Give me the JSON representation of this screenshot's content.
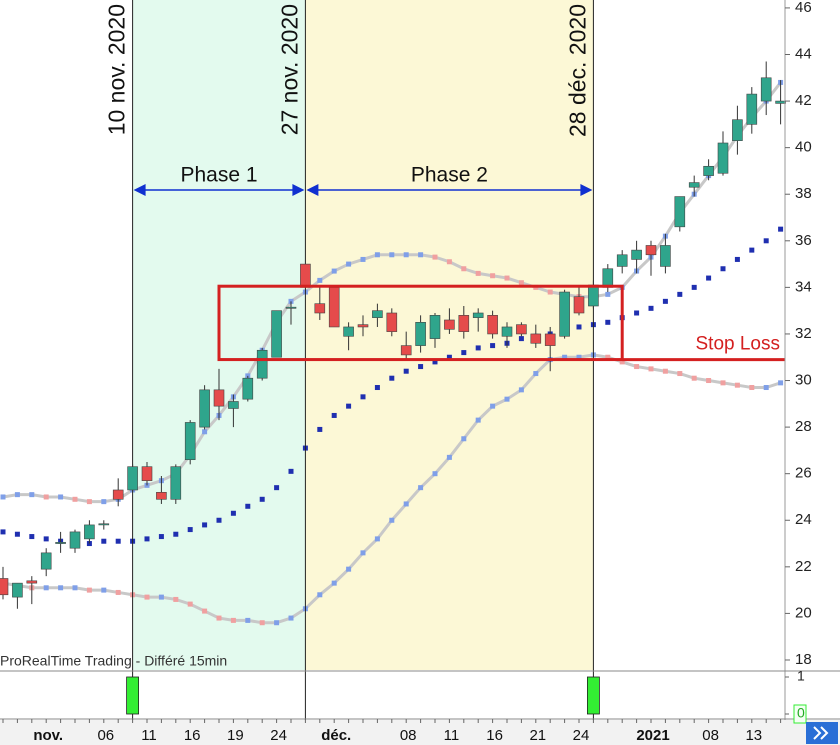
{
  "chart_data": {
    "type": "candlestick",
    "watermark": "ProRealTime Trading - Différé 15min",
    "categories": [
      null,
      null,
      null,
      "nov.",
      null,
      null,
      null,
      "06",
      null,
      null,
      "11",
      null,
      null,
      "16",
      null,
      null,
      "19",
      null,
      null,
      "24",
      null,
      null,
      null,
      "déc.",
      null,
      null,
      null,
      null,
      "08",
      null,
      null,
      "11",
      null,
      null,
      "16",
      null,
      null,
      "21",
      null,
      null,
      "24",
      null,
      null,
      null,
      null,
      "2021",
      null,
      null,
      null,
      "08",
      null,
      null,
      "13",
      null,
      null
    ],
    "open": [
      21.5,
      20.7,
      21.4,
      21.9,
      23.0,
      22.8,
      23.2,
      23.8,
      25.3,
      25.3,
      26.3,
      25.2,
      24.9,
      26.6,
      28.0,
      29.6,
      28.8,
      29.2,
      30.1,
      31.0,
      33.1,
      35.0,
      33.3,
      34.0,
      31.9,
      32.4,
      32.7,
      32.9,
      31.5,
      31.5,
      31.8,
      32.6,
      32.8,
      32.7,
      32.8,
      31.9,
      32.4,
      32.0,
      32.0,
      31.9,
      33.6,
      33.2,
      34.0,
      34.9,
      35.2,
      35.8,
      34.9,
      36.6,
      38.3,
      38.8,
      38.9,
      40.3,
      41.0,
      42.0,
      41.9
    ],
    "high": [
      22.0,
      21.3,
      21.6,
      22.8,
      23.5,
      23.6,
      24.0,
      24.0,
      25.8,
      26.4,
      26.5,
      25.9,
      26.4,
      28.3,
      29.8,
      30.5,
      29.4,
      30.2,
      31.4,
      33.0,
      33.4,
      35.0,
      34.1,
      34.0,
      32.5,
      32.8,
      33.3,
      33.1,
      32.1,
      32.8,
      32.9,
      33.1,
      33.2,
      33.1,
      33.0,
      32.5,
      32.5,
      32.4,
      32.3,
      33.9,
      34.0,
      34.3,
      35.0,
      35.6,
      36.0,
      36.0,
      36.3,
      37.9,
      38.8,
      39.5,
      40.7,
      41.8,
      42.6,
      43.7,
      42.9
    ],
    "low": [
      20.6,
      20.2,
      20.4,
      21.6,
      22.6,
      22.6,
      23.0,
      23.6,
      24.6,
      25.2,
      25.5,
      24.7,
      24.7,
      26.4,
      27.9,
      28.3,
      28.0,
      29.1,
      30.0,
      31.0,
      32.4,
      34.0,
      32.6,
      32.3,
      31.3,
      31.9,
      32.3,
      31.9,
      30.9,
      31.2,
      31.4,
      32.0,
      31.8,
      32.1,
      31.8,
      31.4,
      31.9,
      31.4,
      30.4,
      31.8,
      32.8,
      33.1,
      33.8,
      34.6,
      34.6,
      34.5,
      34.6,
      36.4,
      37.9,
      38.6,
      38.8,
      39.7,
      40.6,
      41.4,
      41.0
    ],
    "close": [
      20.8,
      21.3,
      21.3,
      22.6,
      23.05,
      23.5,
      23.8,
      23.85,
      24.9,
      26.3,
      25.7,
      24.9,
      26.3,
      28.2,
      29.6,
      28.9,
      29.1,
      30.1,
      31.3,
      33.0,
      33.15,
      34.0,
      32.9,
      32.3,
      32.3,
      32.3,
      33.0,
      32.1,
      31.1,
      32.5,
      32.8,
      32.2,
      32.1,
      32.9,
      32.0,
      32.3,
      32.0,
      31.6,
      31.5,
      33.8,
      32.9,
      34.1,
      34.8,
      35.4,
      35.6,
      35.4,
      35.8,
      37.9,
      38.5,
      39.2,
      40.2,
      41.2,
      42.3,
      43.0,
      42.0
    ],
    "up_color": "#2fa58c",
    "down_color": "#e54b4b",
    "upper_band": {
      "values": [
        25.0,
        25.1,
        25.1,
        25.0,
        25.0,
        24.9,
        24.8,
        24.8,
        24.9,
        25.3,
        25.5,
        25.7,
        26.0,
        26.8,
        27.8,
        28.5,
        29.3,
        30.2,
        31.3,
        32.5,
        33.4,
        33.8,
        34.3,
        34.7,
        35.0,
        35.2,
        35.4,
        35.4,
        35.4,
        35.4,
        35.3,
        35.1,
        34.8,
        34.6,
        34.5,
        34.4,
        34.2,
        34.0,
        33.8,
        33.7,
        33.6,
        33.6,
        33.7,
        34.0,
        34.7,
        35.3,
        36.2,
        37.2,
        38.0,
        38.8,
        39.6,
        40.5,
        41.3,
        42.0,
        42.8
      ]
    },
    "lower_band": {
      "values": [
        21.3,
        21.2,
        21.1,
        21.1,
        21.1,
        21.1,
        21.0,
        21.0,
        20.9,
        20.8,
        20.7,
        20.7,
        20.6,
        20.4,
        20.1,
        19.8,
        19.7,
        19.7,
        19.6,
        19.6,
        19.8,
        20.2,
        20.8,
        21.3,
        21.9,
        22.6,
        23.2,
        24.0,
        24.7,
        25.4,
        26.0,
        26.7,
        27.5,
        28.3,
        28.9,
        29.2,
        29.6,
        30.3,
        30.9,
        31.0,
        31.0,
        31.1,
        31.0,
        30.8,
        30.6,
        30.5,
        30.4,
        30.3,
        30.1,
        30.0,
        29.9,
        29.8,
        29.7,
        29.7,
        29.9
      ]
    },
    "band_color": "#c8c8c8",
    "band_rise_color": "#7f9fe8",
    "band_fall_color": "#f0a0a0",
    "sar": {
      "color": "#1f2fb0",
      "values": [
        23.5,
        23.4,
        23.3,
        23.2,
        23.1,
        23.0,
        23.0,
        23.1,
        23.1,
        23.1,
        23.2,
        23.3,
        23.4,
        23.6,
        23.8,
        24.0,
        24.3,
        24.6,
        24.9,
        25.4,
        26.1,
        27.1,
        27.9,
        28.5,
        28.9,
        29.3,
        29.7,
        30.1,
        30.4,
        30.6,
        30.8,
        31.0,
        31.2,
        31.4,
        31.5,
        31.6,
        31.8,
        31.9,
        32.0,
        32.1,
        32.3,
        32.4,
        32.5,
        32.7,
        32.9,
        33.1,
        33.4,
        33.7,
        34.0,
        34.4,
        34.8,
        35.2,
        35.6,
        36.0,
        36.5
      ]
    },
    "ylim": [
      17.57,
      46.34
    ],
    "yticks": [
      18,
      20,
      22,
      24,
      26,
      28,
      30,
      32,
      34,
      36,
      38,
      40,
      42,
      44,
      46
    ],
    "markers": [
      {
        "index": 9,
        "label": "10 nov. 2020"
      },
      {
        "index": 21,
        "label": "27 nov. 2020"
      },
      {
        "index": 41,
        "label": "28 déc. 2020"
      }
    ],
    "phases": [
      {
        "label": "Phase 1",
        "from": 9,
        "to": 21,
        "color": "#e3faee"
      },
      {
        "label": "Phase 2",
        "from": 21,
        "to": 41,
        "color": "#fcf8d6"
      }
    ],
    "range_box": {
      "from": 15,
      "to": 43,
      "low": 30.9,
      "high": 34.05,
      "color": "#d42020"
    },
    "stop_loss": {
      "label": "Stop Loss",
      "value": 30.9
    },
    "signal": {
      "color": "#33ee33",
      "values": [
        0,
        0,
        0,
        0,
        0,
        0,
        0,
        0,
        0,
        1,
        0,
        0,
        0,
        0,
        0,
        0,
        0,
        0,
        0,
        0,
        0,
        0,
        0,
        0,
        0,
        0,
        0,
        0,
        0,
        0,
        0,
        0,
        0,
        0,
        0,
        0,
        0,
        0,
        0,
        0,
        0,
        1,
        0,
        0,
        0,
        0,
        0,
        0,
        0,
        0,
        0,
        0,
        0,
        0,
        0
      ],
      "ylim": [
        0,
        1
      ],
      "yticks": [
        1,
        0
      ]
    }
  }
}
